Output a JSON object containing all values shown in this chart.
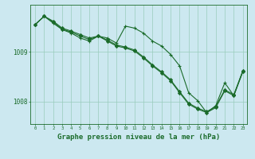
{
  "background_color": "#cce8f0",
  "grid_color": "#99ccbb",
  "line_color": "#1a6b2a",
  "xlabel": "Graphe pression niveau de la mer (hPa)",
  "xlabel_fontsize": 6.5,
  "ytick_labels": [
    "1008",
    "1009"
  ],
  "ytick_values": [
    1008.0,
    1009.0
  ],
  "ylim": [
    1007.55,
    1009.95
  ],
  "xlim": [
    -0.5,
    23.5
  ],
  "xtick_values": [
    0,
    1,
    2,
    3,
    4,
    5,
    6,
    7,
    8,
    9,
    10,
    11,
    12,
    13,
    14,
    15,
    16,
    17,
    18,
    19,
    20,
    21,
    22,
    23
  ],
  "series1_x": [
    0,
    1,
    2,
    3,
    4,
    5,
    6,
    7,
    8,
    9,
    10,
    11,
    12,
    13,
    14,
    15,
    16,
    17,
    18,
    19,
    20,
    21,
    22,
    23
  ],
  "series1_y": [
    1009.55,
    1009.72,
    1009.62,
    1009.48,
    1009.42,
    1009.35,
    1009.28,
    1009.32,
    1009.22,
    1009.12,
    1009.08,
    1009.02,
    1008.88,
    1008.72,
    1008.58,
    1008.42,
    1008.18,
    1007.95,
    1007.85,
    1007.78,
    1007.88,
    1008.22,
    1008.12,
    1008.6
  ],
  "series2_x": [
    0,
    1,
    2,
    3,
    4,
    5,
    6,
    7,
    8,
    9,
    10,
    11,
    12,
    13,
    14,
    15,
    16,
    17,
    18,
    19,
    20,
    21,
    22,
    23
  ],
  "series2_y": [
    1009.55,
    1009.72,
    1009.58,
    1009.45,
    1009.38,
    1009.28,
    1009.22,
    1009.32,
    1009.28,
    1009.18,
    1009.52,
    1009.48,
    1009.38,
    1009.22,
    1009.12,
    1008.95,
    1008.72,
    1008.18,
    1008.02,
    1007.78,
    1007.92,
    1008.38,
    1008.12,
    1008.62
  ],
  "series3_x": [
    0,
    1,
    2,
    3,
    4,
    5,
    6,
    7,
    8,
    9,
    10,
    11,
    12,
    13,
    14,
    15,
    16,
    17,
    18,
    19,
    20,
    21,
    22,
    23
  ],
  "series3_y": [
    1009.55,
    1009.72,
    1009.6,
    1009.46,
    1009.4,
    1009.32,
    1009.25,
    1009.32,
    1009.24,
    1009.14,
    1009.1,
    1009.04,
    1008.9,
    1008.74,
    1008.6,
    1008.44,
    1008.2,
    1007.97,
    1007.87,
    1007.8,
    1007.9,
    1008.24,
    1008.14,
    1008.62
  ]
}
